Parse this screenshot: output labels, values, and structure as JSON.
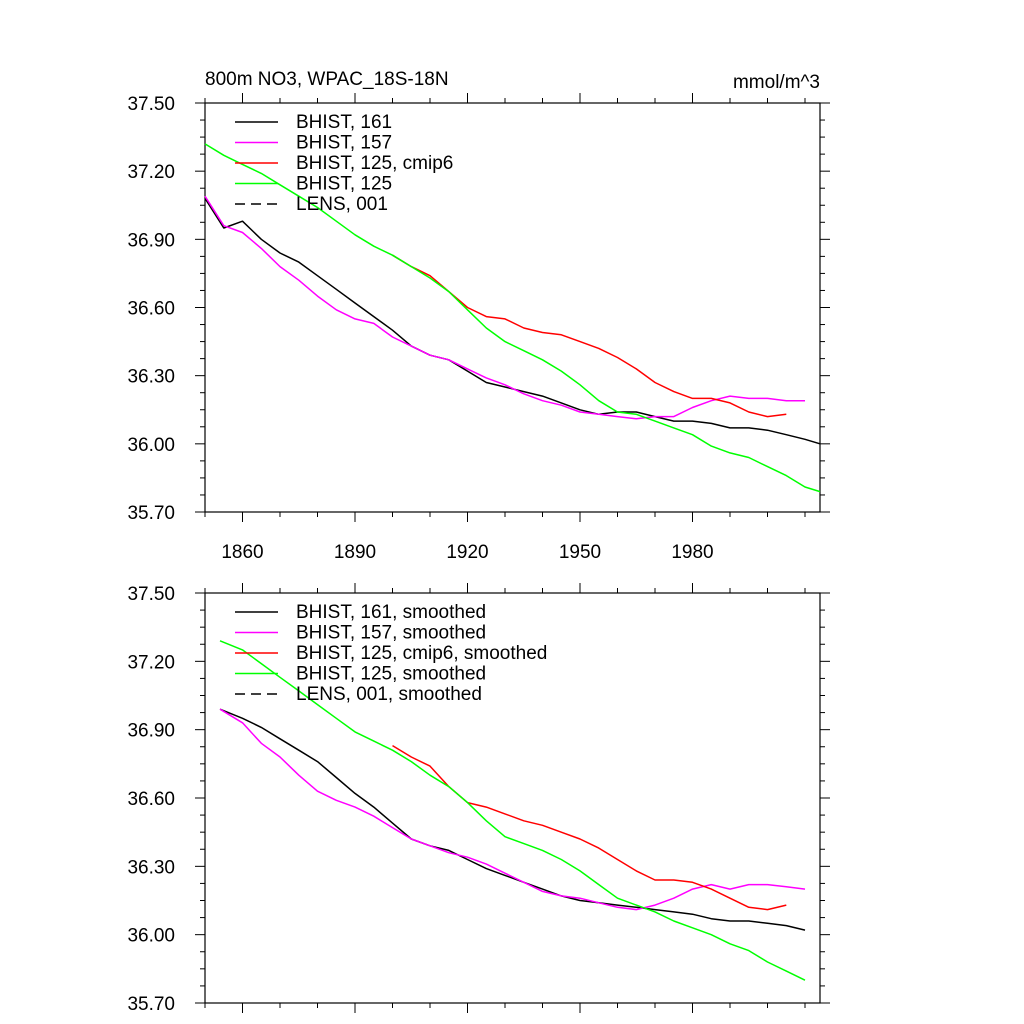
{
  "figure": {
    "title_left": "800m NO3, WPAC_18S-18N",
    "title_right": "mmol/m^3"
  },
  "colors": {
    "bhist_161": "#000000",
    "bhist_157": "#ff00ff",
    "bhist_125_cmip6": "#ff0000",
    "bhist_125": "#00ff00",
    "lens_001": "#000000"
  },
  "chart_data": [
    {
      "type": "line",
      "panel": "top",
      "title": "800m NO3, WPAC_18S-18N",
      "units": "mmol/m^3",
      "xlabel": "",
      "ylabel": "",
      "xlim": [
        1850,
        2014
      ],
      "ylim": [
        35.7,
        37.5
      ],
      "yticks": [
        35.7,
        36.0,
        36.3,
        36.6,
        36.9,
        37.2,
        37.5
      ],
      "ytick_labels": [
        "35.70",
        "36.00",
        "36.30",
        "36.60",
        "36.90",
        "37.20",
        "37.50"
      ],
      "xticks": [
        1860,
        1890,
        1920,
        1950,
        1980
      ],
      "xtick_labels": [
        "1860",
        "1890",
        "1920",
        "1950",
        "1980"
      ],
      "legend_position": "top-left",
      "series": [
        {
          "name": "BHIST, 161",
          "key": "bhist_161",
          "dash": false,
          "x": [
            1850,
            1855,
            1860,
            1865,
            1870,
            1875,
            1880,
            1885,
            1890,
            1895,
            1900,
            1905,
            1910,
            1915,
            1920,
            1925,
            1930,
            1935,
            1940,
            1945,
            1950,
            1955,
            1960,
            1965,
            1970,
            1975,
            1980,
            1985,
            1990,
            1995,
            2000,
            2005,
            2010,
            2014
          ],
          "y": [
            37.08,
            36.95,
            36.98,
            36.9,
            36.84,
            36.8,
            36.74,
            36.68,
            36.62,
            36.56,
            36.5,
            36.43,
            36.39,
            36.37,
            36.32,
            36.27,
            36.25,
            36.23,
            36.21,
            36.18,
            36.15,
            36.13,
            36.14,
            36.14,
            36.12,
            36.1,
            36.1,
            36.09,
            36.07,
            36.07,
            36.06,
            36.04,
            36.02,
            36.0
          ]
        },
        {
          "name": "BHIST, 157",
          "key": "bhist_157",
          "dash": false,
          "x": [
            1850,
            1855,
            1860,
            1865,
            1870,
            1875,
            1880,
            1885,
            1890,
            1895,
            1900,
            1905,
            1910,
            1915,
            1920,
            1925,
            1930,
            1935,
            1940,
            1945,
            1950,
            1955,
            1960,
            1965,
            1970,
            1975,
            1980,
            1985,
            1990,
            1995,
            2000,
            2005,
            2010
          ],
          "y": [
            37.09,
            36.96,
            36.93,
            36.86,
            36.78,
            36.72,
            36.65,
            36.59,
            36.55,
            36.53,
            36.47,
            36.43,
            36.39,
            36.37,
            36.33,
            36.29,
            36.26,
            36.22,
            36.19,
            36.17,
            36.14,
            36.13,
            36.12,
            36.11,
            36.12,
            36.12,
            36.16,
            36.19,
            36.21,
            36.2,
            36.2,
            36.19,
            36.19
          ]
        },
        {
          "name": "BHIST, 125, cmip6",
          "key": "bhist_125_cmip6",
          "dash": false,
          "x": [
            1900,
            1905,
            1910,
            1915,
            1920,
            1925,
            1930,
            1935,
            1940,
            1945,
            1950,
            1955,
            1960,
            1965,
            1970,
            1975,
            1980,
            1985,
            1990,
            1995,
            2000,
            2005
          ],
          "y": [
            36.83,
            36.78,
            36.74,
            36.67,
            36.6,
            36.56,
            36.55,
            36.51,
            36.49,
            36.48,
            36.45,
            36.42,
            36.38,
            36.33,
            36.27,
            36.23,
            36.2,
            36.2,
            36.18,
            36.14,
            36.12,
            36.13
          ]
        },
        {
          "name": "BHIST, 125",
          "key": "bhist_125",
          "dash": false,
          "x": [
            1850,
            1855,
            1860,
            1865,
            1870,
            1875,
            1880,
            1885,
            1890,
            1895,
            1900,
            1905,
            1910,
            1915,
            1920,
            1925,
            1930,
            1935,
            1940,
            1945,
            1950,
            1955,
            1960,
            1965,
            1970,
            1975,
            1980,
            1985,
            1990,
            1995,
            2000,
            2005,
            2010,
            2014
          ],
          "y": [
            37.32,
            37.27,
            37.23,
            37.19,
            37.14,
            37.09,
            37.04,
            36.98,
            36.92,
            36.87,
            36.83,
            36.78,
            36.73,
            36.67,
            36.59,
            36.51,
            36.45,
            36.41,
            36.37,
            36.32,
            36.26,
            36.19,
            36.14,
            36.13,
            36.1,
            36.07,
            36.04,
            35.99,
            35.96,
            35.94,
            35.9,
            35.86,
            35.81,
            35.79
          ]
        },
        {
          "name": "LENS, 001",
          "key": "lens_001",
          "dash": true,
          "x": [],
          "y": []
        }
      ]
    },
    {
      "type": "line",
      "panel": "bottom",
      "title": "",
      "xlabel": "",
      "ylabel": "",
      "xlim": [
        1850,
        2014
      ],
      "ylim": [
        35.7,
        37.5
      ],
      "yticks": [
        35.7,
        36.0,
        36.3,
        36.6,
        36.9,
        37.2,
        37.5
      ],
      "ytick_labels": [
        "35.70",
        "36.00",
        "36.30",
        "36.60",
        "36.90",
        "37.20",
        "37.50"
      ],
      "xticks": [
        1860,
        1890,
        1920,
        1950,
        1980
      ],
      "xtick_labels": [],
      "legend_position": "top-left",
      "series": [
        {
          "name": "BHIST, 161, smoothed",
          "key": "bhist_161",
          "dash": false,
          "x": [
            1854,
            1860,
            1865,
            1870,
            1875,
            1880,
            1885,
            1890,
            1895,
            1900,
            1905,
            1910,
            1915,
            1920,
            1925,
            1930,
            1935,
            1940,
            1945,
            1950,
            1955,
            1960,
            1965,
            1970,
            1975,
            1980,
            1985,
            1990,
            1995,
            2000,
            2005,
            2010
          ],
          "y": [
            36.99,
            36.95,
            36.91,
            36.86,
            36.81,
            36.76,
            36.69,
            36.62,
            36.56,
            36.49,
            36.42,
            36.39,
            36.37,
            36.33,
            36.29,
            36.26,
            36.23,
            36.2,
            36.17,
            36.15,
            36.14,
            36.13,
            36.12,
            36.11,
            36.1,
            36.09,
            36.07,
            36.06,
            36.06,
            36.05,
            36.04,
            36.02
          ]
        },
        {
          "name": "BHIST, 157, smoothed",
          "key": "bhist_157",
          "dash": false,
          "x": [
            1854,
            1860,
            1865,
            1870,
            1875,
            1880,
            1885,
            1890,
            1895,
            1900,
            1905,
            1910,
            1915,
            1920,
            1925,
            1930,
            1935,
            1940,
            1945,
            1950,
            1955,
            1960,
            1965,
            1970,
            1975,
            1980,
            1985,
            1990,
            1995,
            2000,
            2005,
            2010
          ],
          "y": [
            36.99,
            36.93,
            36.84,
            36.78,
            36.7,
            36.63,
            36.59,
            36.56,
            36.52,
            36.47,
            36.42,
            36.39,
            36.36,
            36.34,
            36.31,
            36.27,
            36.23,
            36.19,
            36.17,
            36.16,
            36.14,
            36.12,
            36.11,
            36.13,
            36.16,
            36.2,
            36.22,
            36.2,
            36.22,
            36.22,
            36.21,
            36.2
          ]
        },
        {
          "name": "BHIST, 125, cmip6, smoothed",
          "key": "bhist_125_cmip6",
          "dash": false,
          "x": [
            1900,
            1905,
            1910,
            1915,
            1920,
            1925,
            1930,
            1935,
            1940,
            1945,
            1950,
            1955,
            1960,
            1965,
            1970,
            1975,
            1980,
            1985,
            1990,
            1995,
            2000,
            2005
          ],
          "y": [
            36.83,
            36.78,
            36.74,
            36.65,
            36.58,
            36.56,
            36.53,
            36.5,
            36.48,
            36.45,
            36.42,
            36.38,
            36.33,
            36.28,
            36.24,
            36.24,
            36.23,
            36.2,
            36.16,
            36.12,
            36.11,
            36.13
          ]
        },
        {
          "name": "BHIST, 125, smoothed",
          "key": "bhist_125",
          "dash": false,
          "x": [
            1854,
            1860,
            1865,
            1870,
            1875,
            1880,
            1885,
            1890,
            1895,
            1900,
            1905,
            1910,
            1915,
            1920,
            1925,
            1930,
            1935,
            1940,
            1945,
            1950,
            1955,
            1960,
            1965,
            1970,
            1975,
            1980,
            1985,
            1990,
            1995,
            2000,
            2005,
            2010
          ],
          "y": [
            37.29,
            37.25,
            37.19,
            37.13,
            37.07,
            37.01,
            36.95,
            36.89,
            36.85,
            36.81,
            36.76,
            36.7,
            36.65,
            36.58,
            36.5,
            36.43,
            36.4,
            36.37,
            36.33,
            36.28,
            36.22,
            36.16,
            36.13,
            36.1,
            36.06,
            36.03,
            36.0,
            35.96,
            35.93,
            35.88,
            35.84,
            35.8
          ]
        },
        {
          "name": "LENS, 001, smoothed",
          "key": "lens_001",
          "dash": true,
          "x": [],
          "y": []
        }
      ]
    }
  ]
}
